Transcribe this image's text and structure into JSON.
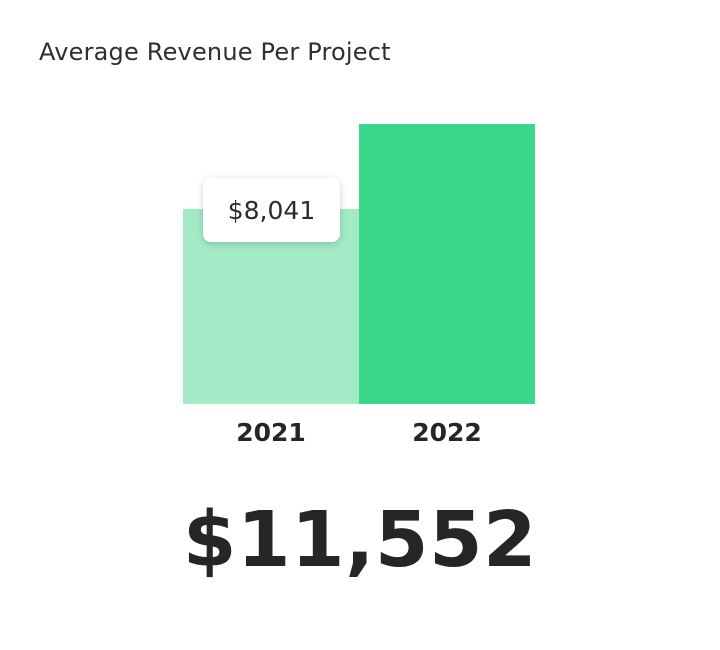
{
  "title": "Average Revenue Per Project",
  "total_value": "$11,552",
  "tooltip": {
    "label": "$8,041"
  },
  "colors": {
    "bar_2021": "#a3ebc6",
    "bar_2022": "#39d78a",
    "text": "#262626"
  },
  "chart_data": {
    "type": "bar",
    "title": "Average Revenue Per Project",
    "categories": [
      "2021",
      "2022"
    ],
    "values": [
      8041,
      11552
    ],
    "xlabel": "",
    "ylabel": "",
    "ylim": [
      0,
      11552
    ],
    "grid": false,
    "data_labels": [
      "$8,041"
    ]
  }
}
